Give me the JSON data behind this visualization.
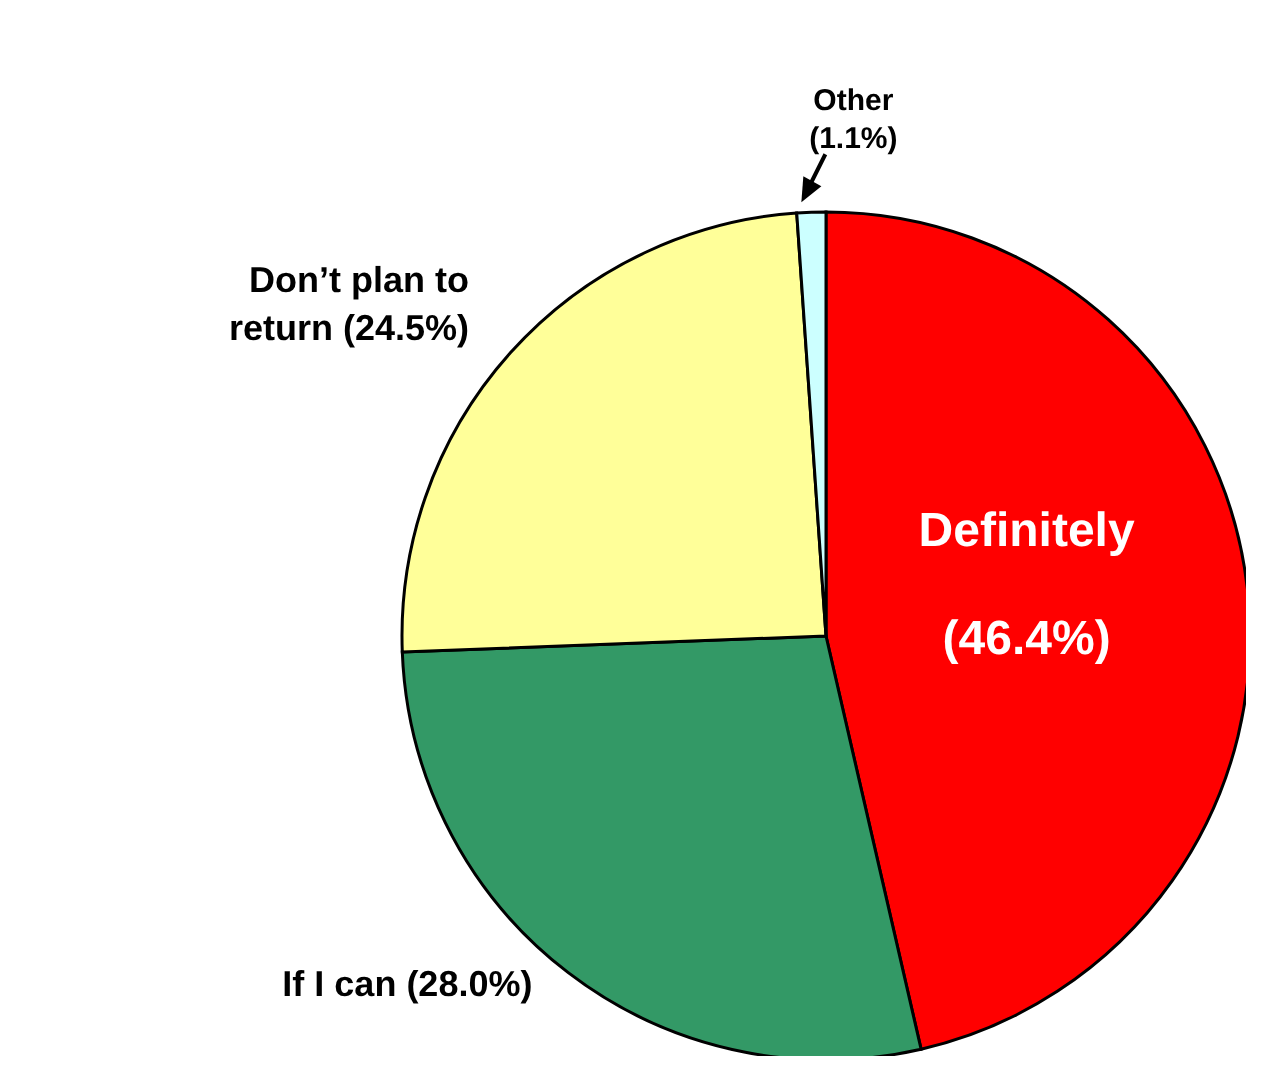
{
  "chart_data": {
    "type": "pie",
    "categories": [
      "Definitely",
      "If I can",
      "Don’t plan to return",
      "Other"
    ],
    "values": [
      46.4,
      28.0,
      24.5,
      1.1
    ],
    "colors": [
      "#ff0000",
      "#339966",
      "#ffff99",
      "#ccffff"
    ],
    "value_labels": [
      "(46.4%)",
      "(28.0%)",
      "(24.5%)",
      "(1.1%)"
    ]
  }
}
